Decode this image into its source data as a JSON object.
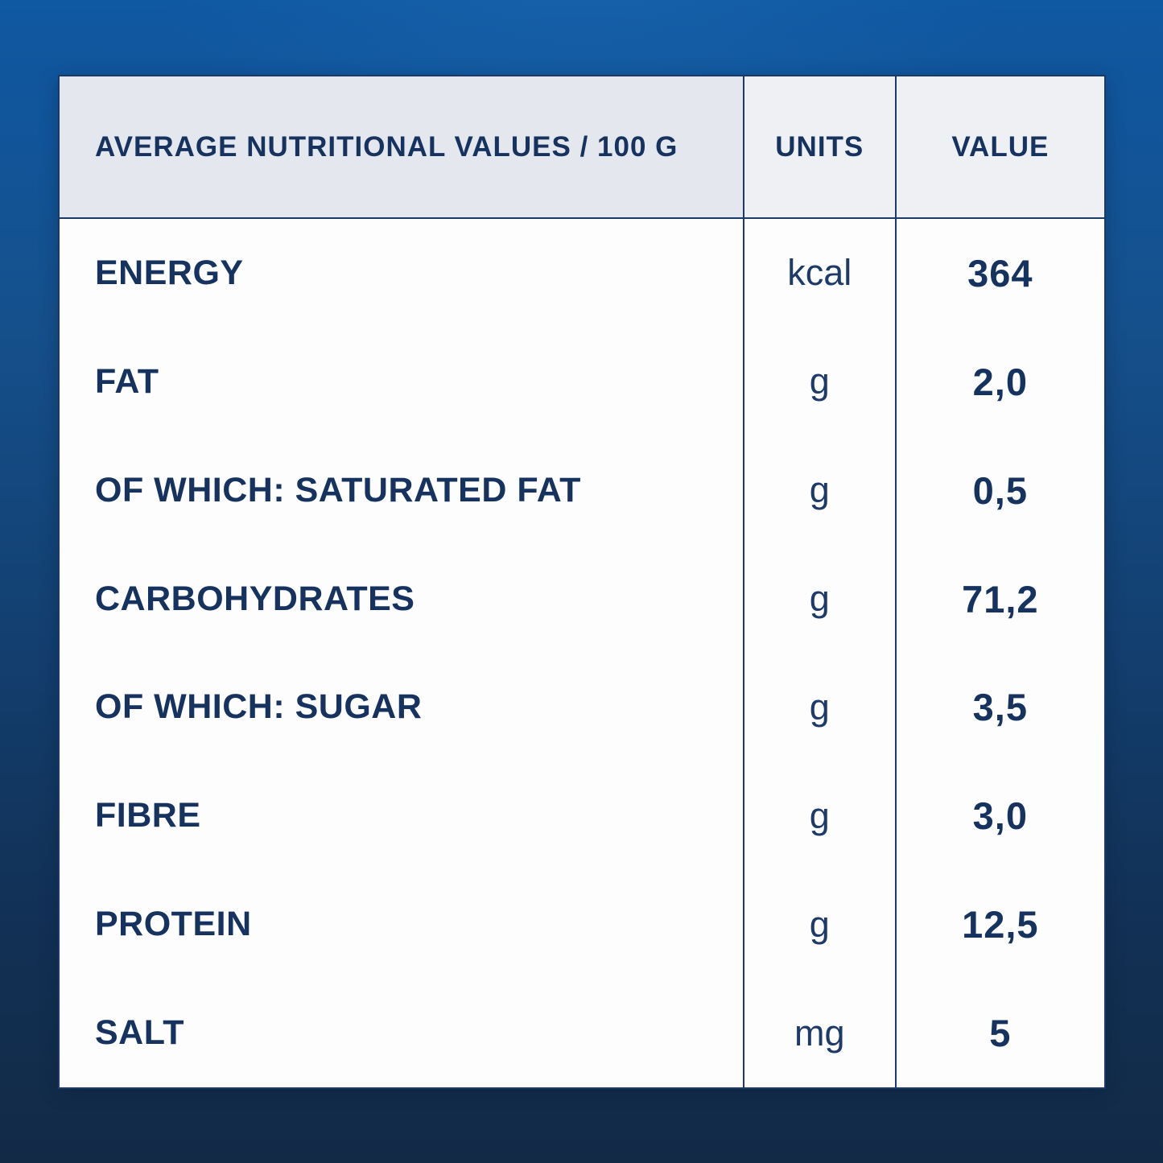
{
  "chart_data": {
    "type": "table",
    "title": "AVERAGE NUTRITIONAL VALUES / 100 G",
    "column_headers": {
      "label": "AVERAGE NUTRITIONAL VALUES / 100 G",
      "units": "UNITS",
      "value": "VALUE"
    },
    "rows": [
      {
        "label": "ENERGY",
        "units": "kcal",
        "value": "364"
      },
      {
        "label": "FAT",
        "units": "g",
        "value": "2,0"
      },
      {
        "label": "OF WHICH: SATURATED FAT",
        "units": "g",
        "value": "0,5"
      },
      {
        "label": "CARBOHYDRATES",
        "units": "g",
        "value": "71,2"
      },
      {
        "label": "OF WHICH: SUGAR",
        "units": "g",
        "value": "3,5"
      },
      {
        "label": "FIBRE",
        "units": "g",
        "value": "3,0"
      },
      {
        "label": "PROTEIN",
        "units": "g",
        "value": "12,5"
      },
      {
        "label": "SALT",
        "units": "mg",
        "value": "5"
      }
    ],
    "layout_hints": {
      "grid": "vertical dividers between columns, single rule under header, no rules between body rows",
      "value_alignment": "center",
      "units_alignment": "center",
      "label_alignment": "left"
    }
  },
  "colors": {
    "background_top": "#0F58A2",
    "background_bottom": "#122A46",
    "table_border": "#1B3A68",
    "header_bg_label": "#E4E7ED",
    "header_bg_units_value": "#EEF0F4",
    "body_bg": "#FDFDFE",
    "text_navy": "#16325F"
  }
}
